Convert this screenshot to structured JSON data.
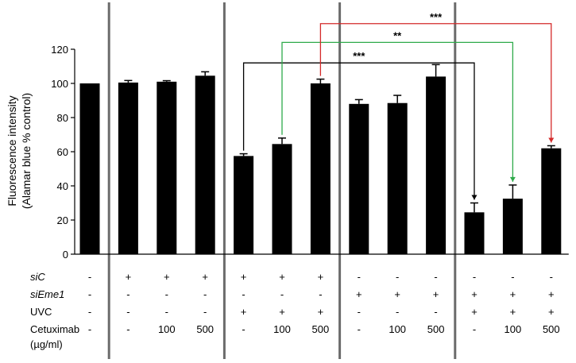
{
  "chart_data": {
    "type": "bar",
    "ylabel_line1": "Fluorescence intensity",
    "ylabel_line2": "(Alamar blue % control)",
    "ylim": [
      0,
      120
    ],
    "yticks": [
      "0",
      "20",
      "40",
      "60",
      "80",
      "100",
      "120"
    ],
    "bar_color": "#000000",
    "values": [
      100,
      100.5,
      101,
      104.5,
      57.5,
      64.5,
      100,
      88,
      88.5,
      104,
      24.5,
      32.5,
      62
    ],
    "errors": [
      0,
      1.2,
      0.6,
      2.3,
      1.3,
      3.5,
      2.5,
      2.5,
      4.5,
      7.0,
      5.5,
      8.0,
      1.5
    ],
    "group_separators_after": [
      0,
      3,
      6,
      9
    ],
    "conditions": [
      {
        "label": "siC",
        "italic": true,
        "values": [
          "-",
          "+",
          "+",
          "+",
          "+",
          "+",
          "+",
          "-",
          "-",
          "-",
          "-",
          "-",
          "-"
        ]
      },
      {
        "label": "siEme1",
        "italic": true,
        "values": [
          "-",
          "-",
          "-",
          "-",
          "-",
          "-",
          "-",
          "+",
          "+",
          "+",
          "+",
          "+",
          "+"
        ]
      },
      {
        "label": "UVC",
        "italic": false,
        "values": [
          "-",
          "-",
          "-",
          "-",
          "+",
          "+",
          "+",
          "-",
          "-",
          "-",
          "+",
          "+",
          "+"
        ]
      },
      {
        "label": "Cetuximab",
        "label2": "(µg/ml)",
        "italic": false,
        "values": [
          "-",
          "-",
          "100",
          "500",
          "-",
          "100",
          "500",
          "-",
          "100",
          "500",
          "-",
          "100",
          "500"
        ]
      }
    ],
    "comparisons": [
      {
        "from": 4,
        "to": 10,
        "y": 112,
        "label": "***",
        "color": "#000000"
      },
      {
        "from": 5,
        "to": 11,
        "y": 124,
        "label": "**",
        "color": "#2eaa4a"
      },
      {
        "from": 6,
        "to": 12,
        "y": 135,
        "label": "***",
        "color": "#d42a2a"
      }
    ]
  }
}
